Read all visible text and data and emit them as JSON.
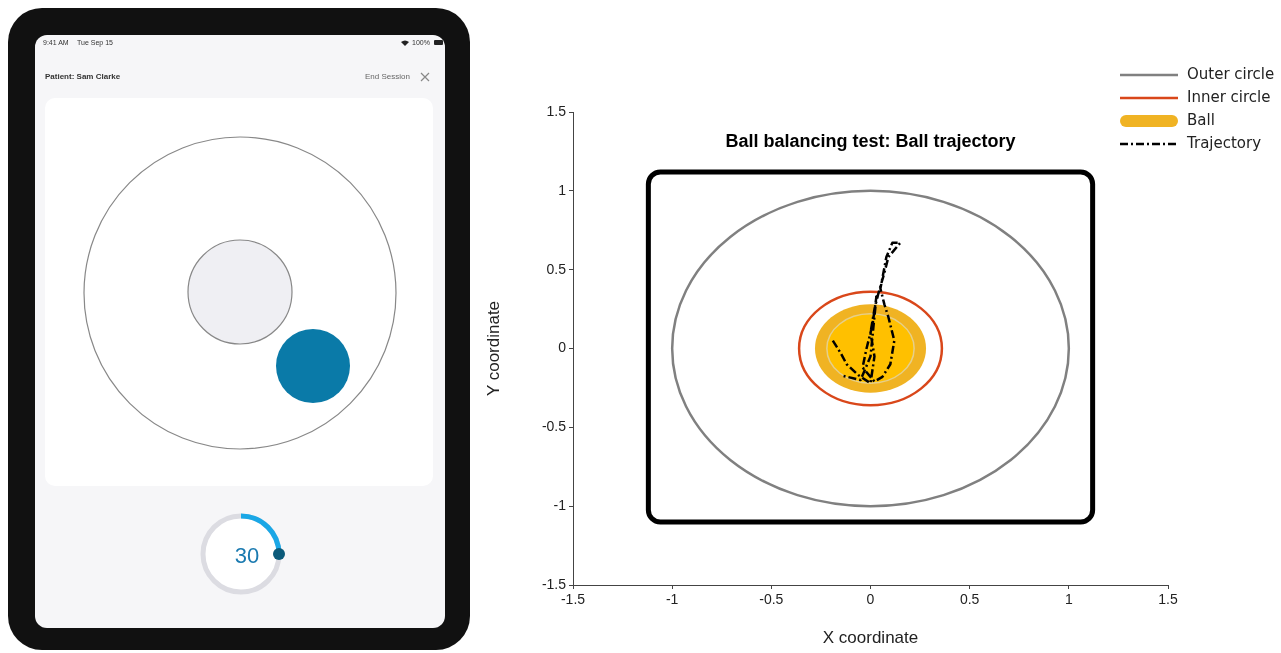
{
  "chart_data": {
    "type": "line",
    "title": "Ball balancing test: Ball trajectory",
    "xlabel": "X coordinate",
    "ylabel": "Y coordinate",
    "xlim": [
      -1.5,
      1.5
    ],
    "xticks": [
      -1.5,
      -1,
      -0.5,
      0,
      0.5,
      1,
      1.5
    ],
    "ylim": [
      -1.5,
      1.5
    ],
    "yticks": [
      -1.5,
      -1,
      -0.5,
      0,
      0.5,
      1,
      1.5
    ],
    "grid": false,
    "legend": "top right",
    "marker": "none",
    "annotations": [
      "9:41 AM",
      "Tue Sep 15",
      "100%",
      "Patient: Sam Clarke",
      "End Session",
      "30",
      "Outer circle",
      "Inner circle",
      "Ball"
    ],
    "series": [
      {
        "name": "Trajectory",
        "color": "#000000",
        "line_style": "dashdot",
        "x": [
          -0.19,
          -0.15,
          -0.12,
          -0.06,
          0,
          0.02,
          0,
          0.02,
          0.04,
          0.07,
          0.09,
          0.15,
          0.11,
          0.08,
          0.05,
          0.07,
          0.09,
          0.12,
          0.1,
          0.06,
          0.02,
          -0.04,
          -0.02,
          0.01,
          0.03,
          0,
          -0.05,
          -0.15
        ],
        "values": [
          0.05,
          -0.03,
          -0.1,
          -0.17,
          -0.22,
          -0.05,
          0.1,
          0.25,
          0.35,
          0.48,
          0.58,
          0.67,
          0.67,
          0.58,
          0.38,
          0.28,
          0.2,
          0.05,
          -0.1,
          -0.18,
          -0.21,
          -0.12,
          0,
          0.15,
          0.33,
          -0.05,
          -0.2,
          -0.17
        ]
      }
    ]
  }
}
